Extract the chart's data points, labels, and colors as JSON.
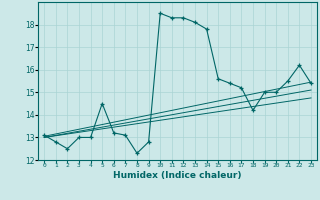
{
  "title": "",
  "xlabel": "Humidex (Indice chaleur)",
  "background_color": "#cce8e8",
  "line_color": "#006666",
  "xlim": [
    -0.5,
    23.5
  ],
  "ylim": [
    12,
    19
  ],
  "yticks": [
    12,
    13,
    14,
    15,
    16,
    17,
    18
  ],
  "xtick_labels": [
    "0",
    "1",
    "2",
    "3",
    "4",
    "5",
    "6",
    "7",
    "8",
    "9",
    "10",
    "11",
    "12",
    "13",
    "14",
    "15",
    "16",
    "17",
    "18",
    "19",
    "20",
    "21",
    "22",
    "23"
  ],
  "series": [
    {
      "x": [
        0,
        1,
        2,
        3,
        4,
        5,
        6,
        7,
        8,
        9,
        10,
        11,
        12,
        13,
        14,
        15,
        16,
        17,
        18,
        19,
        20,
        21,
        22,
        23
      ],
      "y": [
        13.1,
        12.8,
        12.5,
        13.0,
        13.0,
        14.5,
        13.2,
        13.1,
        12.3,
        12.8,
        18.5,
        18.3,
        18.3,
        18.1,
        17.8,
        15.6,
        15.4,
        15.2,
        14.2,
        15.0,
        15.0,
        15.5,
        16.2,
        15.4
      ]
    },
    {
      "x": [
        0,
        23
      ],
      "y": [
        13.05,
        15.45
      ]
    },
    {
      "x": [
        0,
        23
      ],
      "y": [
        13.0,
        15.1
      ]
    },
    {
      "x": [
        0,
        23
      ],
      "y": [
        13.0,
        14.75
      ]
    }
  ]
}
